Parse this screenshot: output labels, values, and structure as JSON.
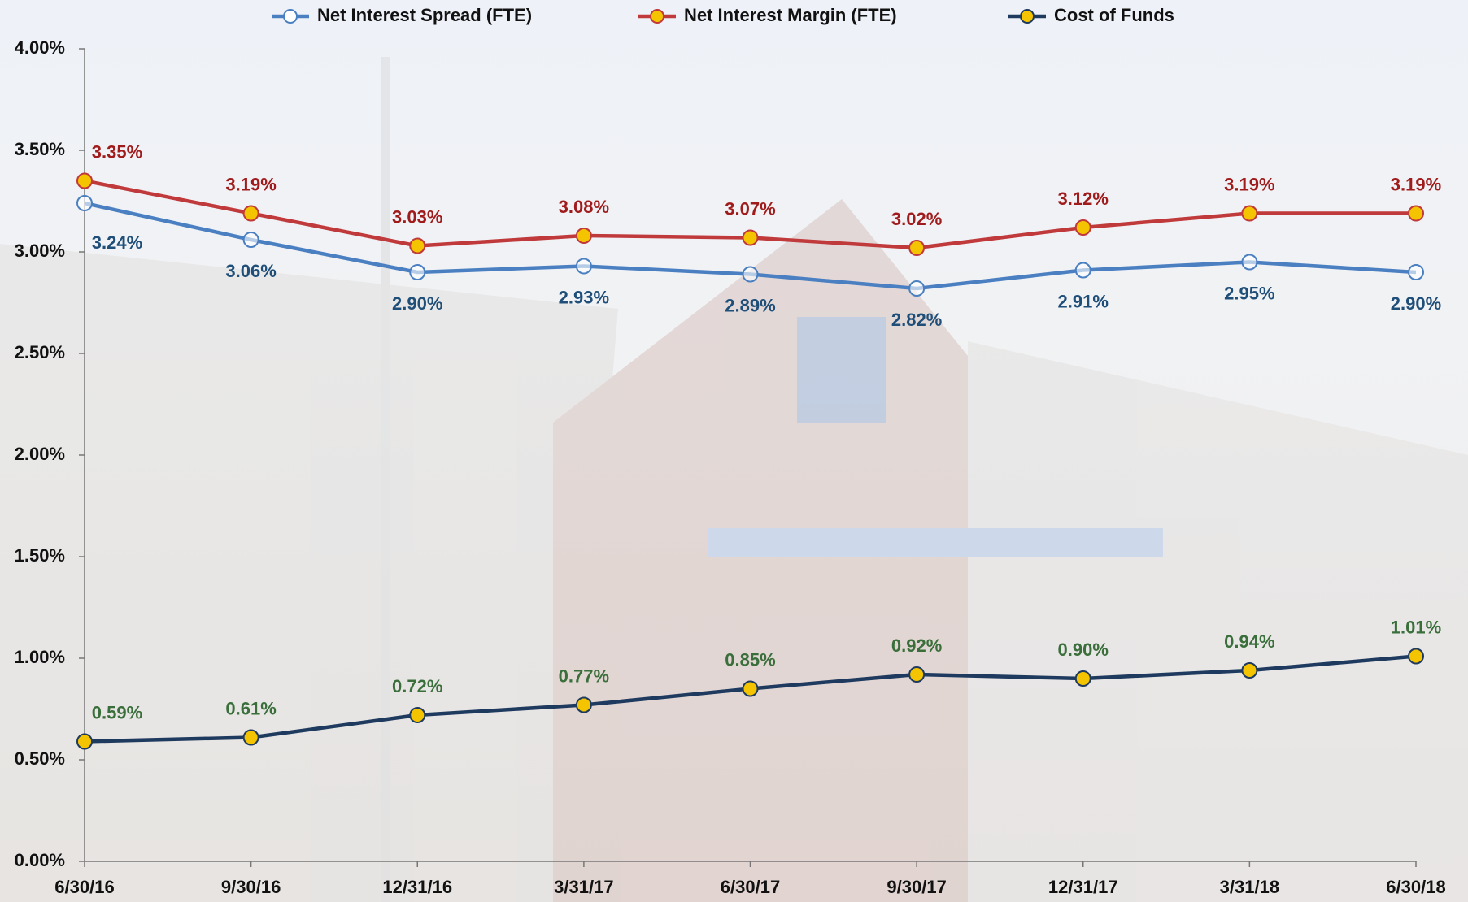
{
  "chart_data": {
    "type": "line",
    "categories": [
      "6/30/16",
      "9/30/16",
      "12/31/16",
      "3/31/17",
      "6/30/17",
      "9/30/17",
      "12/31/17",
      "3/31/18",
      "6/30/18"
    ],
    "ylim": [
      0,
      4
    ],
    "yticks": [
      {
        "value": 0,
        "label": "0.00%"
      },
      {
        "value": 0.5,
        "label": "0.50%"
      },
      {
        "value": 1,
        "label": "1.00%"
      },
      {
        "value": 1.5,
        "label": "1.50%"
      },
      {
        "value": 2,
        "label": "2.00%"
      },
      {
        "value": 2.5,
        "label": "2.50%"
      },
      {
        "value": 3,
        "label": "3.00%"
      },
      {
        "value": 3.5,
        "label": "3.50%"
      },
      {
        "value": 4,
        "label": "4.00%"
      }
    ],
    "grid": false,
    "legend": "top",
    "series": [
      {
        "name": "Net Interest Spread (FTE)",
        "color": "#4a7fc1",
        "marker_fill": "none",
        "label_color": "#1f4e79",
        "label_position": "below",
        "values": [
          3.24,
          3.06,
          2.9,
          2.93,
          2.89,
          2.82,
          2.91,
          2.95,
          2.9
        ],
        "value_labels": [
          "3.24%",
          "3.06%",
          "2.90%",
          "2.93%",
          "2.89%",
          "2.82%",
          "2.91%",
          "2.95%",
          "2.90%"
        ]
      },
      {
        "name": "Net Interest Margin (FTE)",
        "color": "#c0393b",
        "marker_fill": "#f5c400",
        "label_color": "#a01c1c",
        "label_position": "above",
        "values": [
          3.35,
          3.19,
          3.03,
          3.08,
          3.07,
          3.02,
          3.12,
          3.19,
          3.19
        ],
        "value_labels": [
          "3.35%",
          "3.19%",
          "3.03%",
          "3.08%",
          "3.07%",
          "3.02%",
          "3.12%",
          "3.19%",
          "3.19%"
        ]
      },
      {
        "name": "Cost of Funds",
        "color": "#1f3a5f",
        "marker_fill": "#f5c400",
        "label_color": "#3a6e3a",
        "label_position": "above",
        "values": [
          0.59,
          0.61,
          0.72,
          0.77,
          0.85,
          0.92,
          0.9,
          0.94,
          1.01
        ],
        "value_labels": [
          "0.59%",
          "0.61%",
          "0.72%",
          "0.77%",
          "0.85%",
          "0.92%",
          "0.90%",
          "0.94%",
          "1.01%"
        ]
      }
    ]
  }
}
